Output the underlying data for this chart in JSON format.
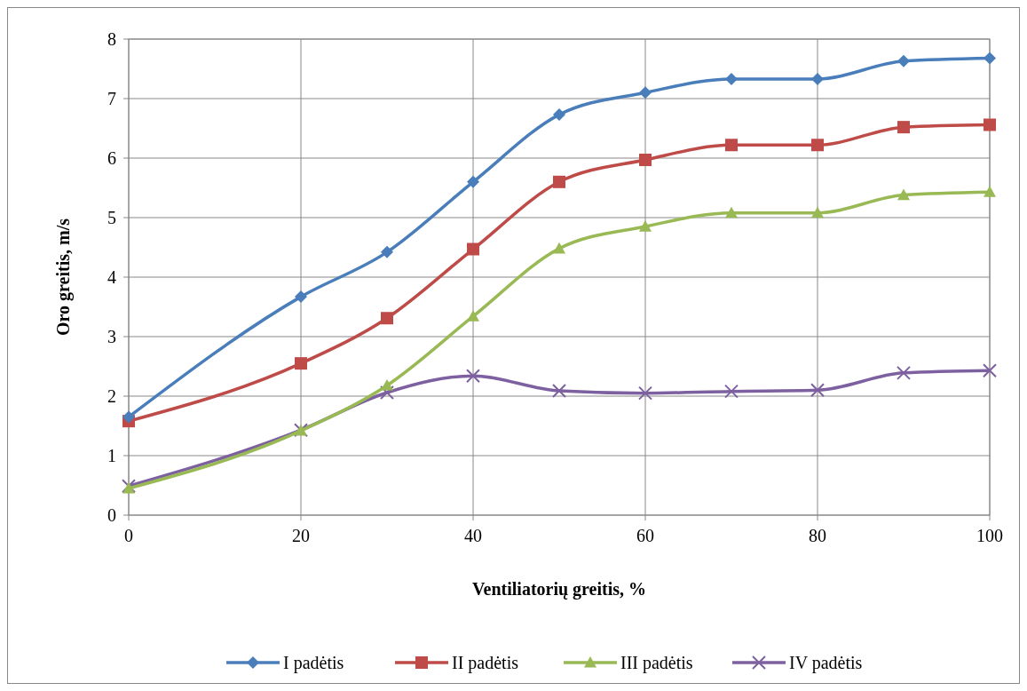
{
  "chart_data": {
    "type": "line",
    "xlabel": "Ventiliatorių greitis, %",
    "ylabel": "Oro greitis, m/s",
    "x": [
      0,
      20,
      30,
      40,
      50,
      60,
      70,
      80,
      90,
      100
    ],
    "xlim": [
      0,
      100
    ],
    "xticks": [
      0,
      20,
      40,
      60,
      80,
      100
    ],
    "ylim": [
      0,
      8
    ],
    "yticks": [
      0,
      1,
      2,
      3,
      4,
      5,
      6,
      7,
      8
    ],
    "grid": true,
    "legend": "bottom",
    "line_style": "solid",
    "series": [
      {
        "name": "I padėtis",
        "color": "#4a7ebb",
        "marker": "diamond",
        "values": [
          1.65,
          3.67,
          4.42,
          5.6,
          6.73,
          7.1,
          7.33,
          7.33,
          7.63,
          7.68
        ]
      },
      {
        "name": "II padėtis",
        "color": "#be4b48",
        "marker": "square",
        "values": [
          1.58,
          2.55,
          3.31,
          4.47,
          5.6,
          5.97,
          6.22,
          6.22,
          6.52,
          6.56
        ]
      },
      {
        "name": "III padėtis",
        "color": "#98b954",
        "marker": "triangle",
        "values": [
          0.45,
          1.42,
          2.18,
          3.34,
          4.48,
          4.85,
          5.08,
          5.08,
          5.38,
          5.43
        ]
      },
      {
        "name": "IV padėtis",
        "color": "#7d60a0",
        "marker": "cross",
        "values": [
          0.49,
          1.43,
          2.06,
          2.34,
          2.09,
          2.05,
          2.08,
          2.1,
          2.39,
          2.43
        ]
      }
    ]
  }
}
